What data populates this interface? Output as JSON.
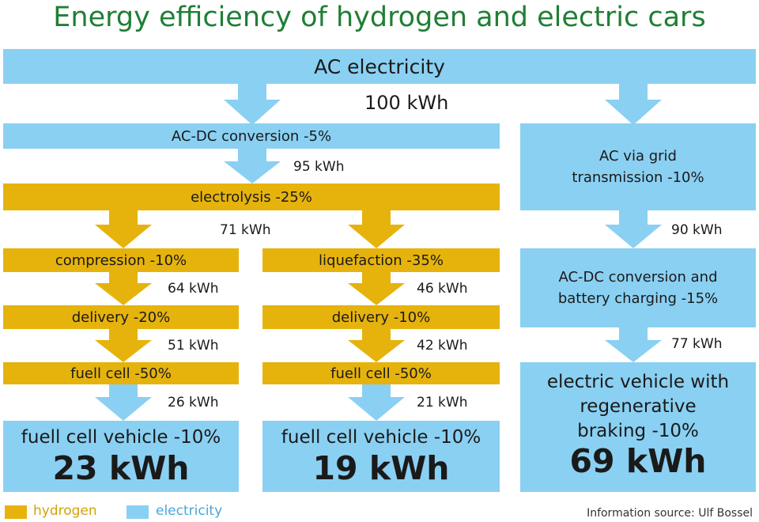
{
  "title": "Energy efficiency of hydrogen and electric cars",
  "colors": {
    "hydrogen": "#e6b30d",
    "electricity": "#8ad0f2",
    "title": "#1f7f35"
  },
  "source": {
    "label": "AC electricity",
    "value": "100 kWh"
  },
  "path_hydrogen_common": {
    "ac_dc": {
      "label": "AC-DC conversion -5%",
      "value": "95 kWh"
    },
    "electrolysis": {
      "label": "electrolysis -25%",
      "value": "71 kWh"
    }
  },
  "path_compression": {
    "steps": [
      {
        "label": "compression -10%",
        "value": "64 kWh"
      },
      {
        "label": "delivery -20%",
        "value": "51 kWh"
      },
      {
        "label": "fuell cell -50%",
        "value": "26 kWh"
      }
    ],
    "result": {
      "label": "fuell cell vehicle -10%",
      "value": "23 kWh"
    }
  },
  "path_liquefaction": {
    "steps": [
      {
        "label": "liquefaction -35%",
        "value": "46 kWh"
      },
      {
        "label": "delivery -10%",
        "value": "42 kWh"
      },
      {
        "label": "fuell cell -50%",
        "value": "21 kWh"
      }
    ],
    "result": {
      "label": "fuell cell vehicle -10%",
      "value": "19 kWh"
    }
  },
  "path_electric": {
    "steps": [
      {
        "label": "AC via grid transmission -10%",
        "value": "90 kWh"
      },
      {
        "label": "AC-DC conversion and battery charging -15%",
        "value": "77 kWh"
      }
    ],
    "result": {
      "label": "electric vehicle with regenerative braking -10%",
      "value": "69 kWh"
    }
  },
  "legend": {
    "hydrogen": "hydrogen",
    "electricity": "electricity"
  },
  "credit": "Information source: Ulf Bossel"
}
